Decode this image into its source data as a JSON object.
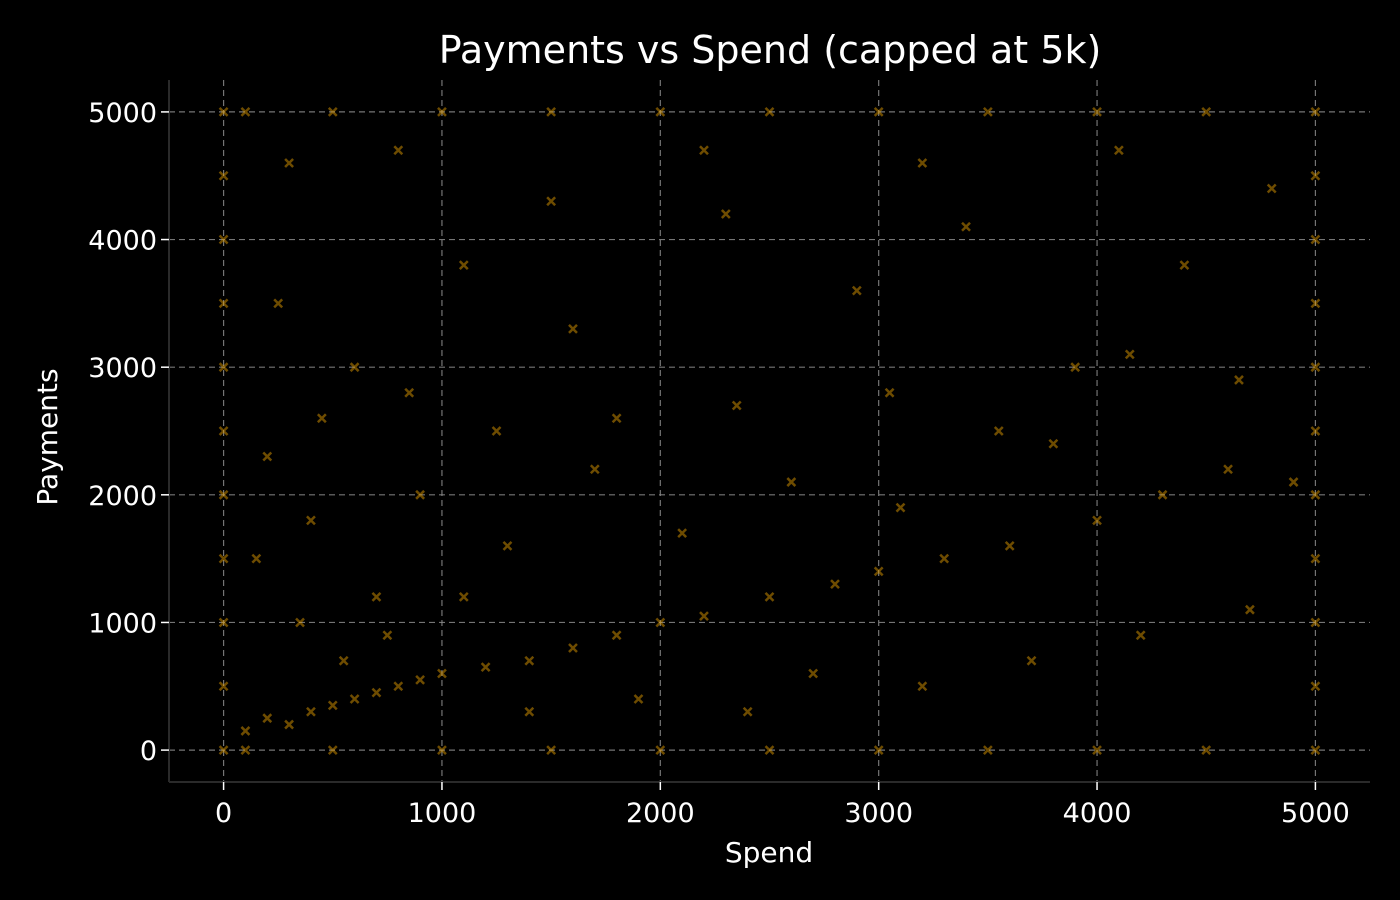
{
  "chart_data": {
    "type": "scatter",
    "title": "Payments vs Spend (capped at 5k)",
    "xlabel": "Spend",
    "ylabel": "Payments",
    "xlim": [
      -250,
      5250
    ],
    "ylim": [
      -250,
      5250
    ],
    "xticks": [
      0,
      1000,
      2000,
      3000,
      4000,
      5000
    ],
    "yticks": [
      0,
      1000,
      2000,
      3000,
      4000,
      5000
    ],
    "xtick_labels": [
      "0",
      "1000",
      "2000",
      "3000",
      "4000",
      "5000"
    ],
    "ytick_labels": [
      "0",
      "1000",
      "2000",
      "3000",
      "4000",
      "5000"
    ],
    "grid": true,
    "marker": "x",
    "point_color": "#f5a800",
    "point_opacity": 0.45,
    "cap": 5000,
    "series": [
      {
        "points": [
          [
            0,
            0
          ],
          [
            0,
            500
          ],
          [
            0,
            1000
          ],
          [
            0,
            1500
          ],
          [
            0,
            2000
          ],
          [
            0,
            2500
          ],
          [
            0,
            3000
          ],
          [
            0,
            3500
          ],
          [
            0,
            4000
          ],
          [
            0,
            4500
          ],
          [
            0,
            5000
          ],
          [
            5000,
            0
          ],
          [
            5000,
            500
          ],
          [
            5000,
            1000
          ],
          [
            5000,
            1500
          ],
          [
            5000,
            2000
          ],
          [
            5000,
            2500
          ],
          [
            5000,
            3000
          ],
          [
            5000,
            3500
          ],
          [
            5000,
            4000
          ],
          [
            5000,
            4500
          ],
          [
            5000,
            5000
          ],
          [
            100,
            5000
          ],
          [
            500,
            5000
          ],
          [
            1000,
            5000
          ],
          [
            1500,
            5000
          ],
          [
            2000,
            5000
          ],
          [
            2500,
            5000
          ],
          [
            3000,
            5000
          ],
          [
            3500,
            5000
          ],
          [
            4000,
            5000
          ],
          [
            4500,
            5000
          ],
          [
            100,
            0
          ],
          [
            500,
            0
          ],
          [
            1000,
            0
          ],
          [
            1500,
            0
          ],
          [
            2000,
            0
          ],
          [
            2500,
            0
          ],
          [
            3000,
            0
          ],
          [
            3500,
            0
          ],
          [
            4000,
            0
          ],
          [
            4500,
            0
          ],
          [
            100,
            150
          ],
          [
            200,
            250
          ],
          [
            300,
            200
          ],
          [
            400,
            300
          ],
          [
            500,
            350
          ],
          [
            600,
            400
          ],
          [
            700,
            450
          ],
          [
            800,
            500
          ],
          [
            900,
            550
          ],
          [
            1000,
            600
          ],
          [
            1200,
            650
          ],
          [
            1400,
            700
          ],
          [
            1600,
            800
          ],
          [
            1800,
            900
          ],
          [
            2000,
            1000
          ],
          [
            2200,
            1050
          ],
          [
            2500,
            1200
          ],
          [
            2800,
            1300
          ],
          [
            3000,
            1400
          ],
          [
            3300,
            1500
          ],
          [
            3600,
            1600
          ],
          [
            4000,
            1800
          ],
          [
            4300,
            2000
          ],
          [
            4600,
            2200
          ],
          [
            4900,
            2100
          ],
          [
            150,
            1500
          ],
          [
            400,
            1800
          ],
          [
            700,
            1200
          ],
          [
            900,
            2000
          ],
          [
            1300,
            1600
          ],
          [
            1700,
            2200
          ],
          [
            2100,
            1700
          ],
          [
            2600,
            2100
          ],
          [
            3100,
            1900
          ],
          [
            3800,
            2400
          ],
          [
            250,
            3500
          ],
          [
            600,
            3000
          ],
          [
            1100,
            3800
          ],
          [
            1600,
            3300
          ],
          [
            2300,
            4200
          ],
          [
            2900,
            3600
          ],
          [
            3400,
            4100
          ],
          [
            3900,
            3000
          ],
          [
            4400,
            3800
          ],
          [
            4800,
            4400
          ],
          [
            300,
            4600
          ],
          [
            800,
            4700
          ],
          [
            1500,
            4300
          ],
          [
            2200,
            4700
          ],
          [
            3200,
            4600
          ],
          [
            4100,
            4700
          ],
          [
            350,
            1000
          ],
          [
            550,
            700
          ],
          [
            750,
            900
          ],
          [
            1100,
            1200
          ],
          [
            1400,
            300
          ],
          [
            1900,
            400
          ],
          [
            2400,
            300
          ],
          [
            2700,
            600
          ],
          [
            3200,
            500
          ],
          [
            3700,
            700
          ],
          [
            4200,
            900
          ],
          [
            4700,
            1100
          ],
          [
            200,
            2300
          ],
          [
            450,
            2600
          ],
          [
            850,
            2800
          ],
          [
            1250,
            2500
          ],
          [
            1800,
            2600
          ],
          [
            2350,
            2700
          ],
          [
            3050,
            2800
          ],
          [
            3550,
            2500
          ],
          [
            4150,
            3100
          ],
          [
            4650,
            2900
          ]
        ]
      }
    ]
  }
}
